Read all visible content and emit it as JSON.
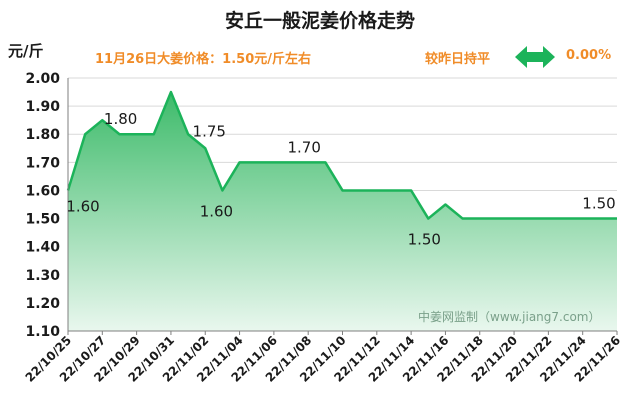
{
  "title": "安丘一般泥姜价格走势",
  "unit": "元/斤",
  "price_note": "11月26日大姜价格：1.50元/斤左右",
  "compare_text": "较昨日持平",
  "change_text": "0.00%",
  "arrow_icon": "left-right-arrow",
  "watermark": "中姜网监制（www.jiang7.com）",
  "colors": {
    "line": "#1cb35a",
    "fill_top": "#3dbb6a",
    "fill_bottom": "#e9f7ee",
    "accent": "#f08c28",
    "arrow": "#1cb35a"
  },
  "chart_data": {
    "type": "area",
    "title": "安丘一般泥姜价格走势",
    "ylabel": "元/斤",
    "ylim": [
      1.1,
      2.0
    ],
    "yticks": [
      "1.10",
      "1.20",
      "1.30",
      "1.40",
      "1.50",
      "1.60",
      "1.70",
      "1.80",
      "1.90",
      "2.00"
    ],
    "grid": true,
    "x_ticks": [
      "22/10/25",
      "22/10/27",
      "22/10/29",
      "22/10/31",
      "22/11/02",
      "22/11/04",
      "22/11/06",
      "22/11/08",
      "22/11/10",
      "22/11/12",
      "22/11/14",
      "22/11/16",
      "22/11/18",
      "22/11/20",
      "22/11/22",
      "22/11/24",
      "22/11/26"
    ],
    "x": [
      "22/10/25",
      "22/10/26",
      "22/10/27",
      "22/10/28",
      "22/10/29",
      "22/10/30",
      "22/10/31",
      "22/11/01",
      "22/11/02",
      "22/11/03",
      "22/11/04",
      "22/11/05",
      "22/11/06",
      "22/11/07",
      "22/11/08",
      "22/11/09",
      "22/11/10",
      "22/11/11",
      "22/11/12",
      "22/11/13",
      "22/11/14",
      "22/11/15",
      "22/11/16",
      "22/11/17",
      "22/11/18",
      "22/11/19",
      "22/11/20",
      "22/11/21",
      "22/11/22",
      "22/11/23",
      "22/11/24",
      "22/11/25",
      "22/11/26"
    ],
    "series": [
      {
        "values": [
          1.6,
          1.8,
          1.85,
          1.8,
          1.8,
          1.8,
          1.95,
          1.8,
          1.75,
          1.6,
          1.7,
          1.7,
          1.7,
          1.7,
          1.7,
          1.7,
          1.6,
          1.6,
          1.6,
          1.6,
          1.6,
          1.5,
          1.55,
          1.5,
          1.5,
          1.5,
          1.5,
          1.5,
          1.5,
          1.5,
          1.5,
          1.5,
          1.5
        ]
      }
    ],
    "annotations": [
      {
        "index": 0,
        "text": "1.60"
      },
      {
        "index": 4,
        "text": "1.80"
      },
      {
        "index": 8,
        "text": "1.75"
      },
      {
        "index": 9,
        "text": "1.60"
      },
      {
        "index": 14,
        "text": "1.70"
      },
      {
        "index": 21,
        "text": "1.50"
      },
      {
        "index": 32,
        "text": "1.50"
      }
    ]
  }
}
